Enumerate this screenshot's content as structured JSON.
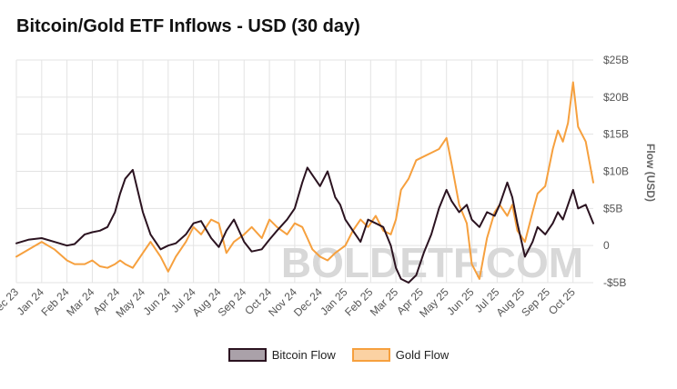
{
  "colors": {
    "bitcoin": "#2b1320",
    "bitcoin_fill": "#aaa1a9",
    "gold": "#f6a03e",
    "gold_fill": "#fbd2a3",
    "grid": "#e3e3e3",
    "watermark": "#d8d8d8"
  },
  "watermark": "BOLDETF.COM",
  "chart_data": {
    "type": "line",
    "title": "Bitcoin/Gold ETF Inflows - USD (30 day)",
    "ylabel": "Flow (USD)",
    "xlabel": "",
    "ylim": [
      -5,
      25
    ],
    "y_ticks": [
      {
        "value": 25,
        "label": "$25B"
      },
      {
        "value": 20,
        "label": "$20B"
      },
      {
        "value": 15,
        "label": "$15B"
      },
      {
        "value": 10,
        "label": "$10B"
      },
      {
        "value": 5,
        "label": "$5B"
      },
      {
        "value": 0,
        "label": "0"
      },
      {
        "value": -5,
        "label": "-$5B"
      }
    ],
    "x_range": [
      0,
      22.8
    ],
    "x_ticks": [
      "Dec 23",
      "Jan 24",
      "Feb 24",
      "Mar 24",
      "Apr 24",
      "May 24",
      "Jun 24",
      "Jul 24",
      "Aug 24",
      "Sep 24",
      "Oct 24",
      "Nov 24",
      "Dec 24",
      "Jan 25",
      "Feb 25",
      "Mar 25",
      "Apr 25",
      "May 25",
      "Jun 25",
      "Jul 25",
      "Aug 25",
      "Sep 25",
      "Oct 25"
    ],
    "legend_position": "bottom-center",
    "series": [
      {
        "name": "Bitcoin Flow",
        "x": [
          0,
          0.5,
          1,
          1.5,
          2,
          2.3,
          2.7,
          3,
          3.3,
          3.6,
          3.9,
          4.1,
          4.3,
          4.6,
          5,
          5.3,
          5.7,
          6,
          6.3,
          6.7,
          7,
          7.3,
          7.7,
          8,
          8.3,
          8.6,
          9,
          9.3,
          9.7,
          10,
          10.3,
          10.7,
          11,
          11.3,
          11.5,
          11.7,
          12,
          12.3,
          12.6,
          12.8,
          13,
          13.3,
          13.6,
          13.9,
          14.2,
          14.5,
          14.8,
          15,
          15.2,
          15.5,
          15.8,
          16.1,
          16.4,
          16.7,
          17,
          17.2,
          17.5,
          17.8,
          18,
          18.3,
          18.6,
          18.9,
          19.1,
          19.4,
          19.6,
          19.8,
          20.1,
          20.4,
          20.6,
          20.9,
          21.2,
          21.4,
          21.6,
          21.8,
          22,
          22.2,
          22.5,
          22.8
        ],
        "values": [
          0.3,
          0.8,
          1.0,
          0.5,
          0.0,
          0.2,
          1.5,
          1.8,
          2.0,
          2.5,
          4.5,
          7.0,
          9.0,
          10.2,
          4.5,
          1.5,
          -0.5,
          0.0,
          0.3,
          1.5,
          3.0,
          3.3,
          1.0,
          -0.2,
          2.0,
          3.5,
          0.5,
          -0.8,
          -0.5,
          0.8,
          2.0,
          3.5,
          5.0,
          8.5,
          10.5,
          9.5,
          8.0,
          10.0,
          6.5,
          5.5,
          3.5,
          2.0,
          0.5,
          3.5,
          3.0,
          2.5,
          0.0,
          -3.0,
          -4.5,
          -5.0,
          -4.0,
          -1.0,
          1.5,
          5.0,
          7.5,
          6.0,
          4.5,
          5.5,
          3.5,
          2.5,
          4.5,
          4.0,
          5.5,
          8.5,
          6.5,
          3.0,
          -1.5,
          0.5,
          2.5,
          1.5,
          3.0,
          4.5,
          3.5,
          5.5,
          7.5,
          5.0,
          5.5,
          3.0
        ]
      },
      {
        "name": "Gold Flow",
        "x": [
          0,
          0.5,
          1,
          1.5,
          2,
          2.3,
          2.7,
          3,
          3.3,
          3.6,
          3.9,
          4.1,
          4.3,
          4.6,
          5,
          5.3,
          5.7,
          6,
          6.3,
          6.7,
          7,
          7.3,
          7.7,
          8,
          8.3,
          8.6,
          9,
          9.3,
          9.7,
          10,
          10.3,
          10.7,
          11,
          11.3,
          11.5,
          11.7,
          12,
          12.3,
          12.6,
          12.8,
          13,
          13.3,
          13.6,
          13.9,
          14.2,
          14.5,
          14.8,
          15,
          15.2,
          15.5,
          15.8,
          16.1,
          16.4,
          16.7,
          17,
          17.2,
          17.5,
          17.8,
          18,
          18.3,
          18.6,
          18.9,
          19.1,
          19.4,
          19.6,
          19.8,
          20.1,
          20.4,
          20.6,
          20.9,
          21.2,
          21.4,
          21.6,
          21.8,
          22,
          22.2,
          22.5,
          22.8
        ],
        "values": [
          -1.5,
          -0.5,
          0.5,
          -0.5,
          -2.0,
          -2.5,
          -2.5,
          -2.0,
          -2.8,
          -3.0,
          -2.5,
          -2.0,
          -2.5,
          -3.0,
          -1.0,
          0.5,
          -1.5,
          -3.5,
          -1.5,
          0.5,
          2.5,
          1.5,
          3.5,
          3.0,
          -1.0,
          0.5,
          1.5,
          2.5,
          1.0,
          3.5,
          2.5,
          1.5,
          3.0,
          2.5,
          1.0,
          -0.5,
          -1.5,
          -2.0,
          -1.0,
          -0.5,
          0.0,
          2.0,
          3.5,
          2.5,
          4.0,
          2.0,
          1.5,
          3.5,
          7.5,
          9.0,
          11.5,
          12.0,
          12.5,
          13.0,
          14.5,
          11.0,
          5.5,
          3.0,
          -2.5,
          -4.5,
          1.0,
          4.5,
          5.5,
          4.0,
          5.5,
          2.0,
          0.5,
          4.5,
          7.0,
          8.0,
          13.0,
          15.5,
          14.0,
          16.5,
          22.0,
          16.0,
          14.0,
          8.5
        ]
      }
    ]
  }
}
